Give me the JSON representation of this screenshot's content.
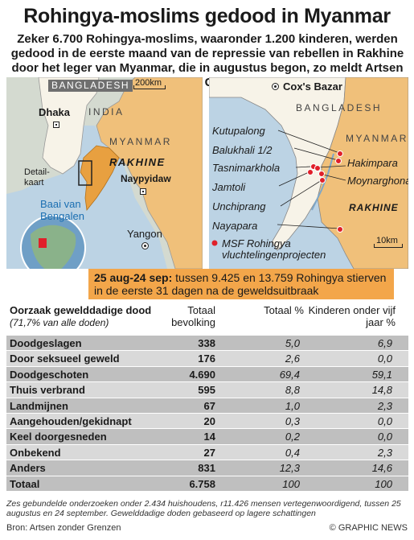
{
  "title": "Rohingya-moslims gedood in Myanmar",
  "intro": "Zeker 6.700 Rohingya-moslims, waaronder 1.200 kinderen, werden gedood in de eerste maand van de repressie van rebellen in Rakhine door het leger van Myanmar, die in augustus begon, zo meldt Artsen zonder Grenzen",
  "map_left": {
    "countries": [
      "BANGLADESH",
      "INDIA",
      "MYANMAR"
    ],
    "region": "RAKHINE",
    "scale": "200km",
    "cities": [
      "Dhaka",
      "Naypyidaw",
      "Yangon"
    ],
    "inset_label": "Detail-kaart",
    "sea": "Baai van Bengalen"
  },
  "map_right": {
    "town": "Cox's Bazar",
    "countries": [
      "BANGLADESH",
      "MYANMAR"
    ],
    "region": "RAKHINE",
    "camps": [
      "Kutupalong",
      "Balukhali 1/2",
      "Tasnimarkhola",
      "Jamtoli",
      "Unchiprang",
      "Nayapara",
      "Hakimpara",
      "Moynarghona"
    ],
    "legend": "MSF Rohingya vluchtelingenprojecten",
    "scale": "10km",
    "colors": {
      "camp": "#e0202a",
      "myanmar": "#f0c07a",
      "bangladesh": "#f7f3e8"
    }
  },
  "callout": {
    "dates": "25 aug-24 sep:",
    "text": "tussen 9.425 en 13.759 Rohingya stierven in de eerste 31 dagen na de geweldsuitbraak"
  },
  "table": {
    "headers": {
      "cause": "Oorzaak gewelddadige dood",
      "cause_sub": "(71,7% van alle doden)",
      "pop": "Totaal bevolking",
      "pct": "Totaal %",
      "kids": "Kinderen onder vijf jaar %"
    },
    "rows": [
      {
        "label": "Doodgeslagen",
        "pop": "338",
        "pct": "5,0",
        "kids": "6,9"
      },
      {
        "label": "Door seksueel geweld",
        "pop": "176",
        "pct": "2,6",
        "kids": "0,0"
      },
      {
        "label": "Doodgeschoten",
        "pop": "4.690",
        "pct": "69,4",
        "kids": "59,1"
      },
      {
        "label": "Thuis verbrand",
        "pop": "595",
        "pct": "8,8",
        "kids": "14,8"
      },
      {
        "label": "Landmijnen",
        "pop": "67",
        "pct": "1,0",
        "kids": "2,3"
      },
      {
        "label": "Aangehouden/gekidnapt",
        "pop": "20",
        "pct": "0,3",
        "kids": "0,0"
      },
      {
        "label": "Keel doorgesneden",
        "pop": "14",
        "pct": "0,2",
        "kids": "0,0"
      },
      {
        "label": "Onbekend",
        "pop": "27",
        "pct": "0,4",
        "kids": "2,3"
      },
      {
        "label": "Anders",
        "pop": "831",
        "pct": "12,3",
        "kids": "14,6"
      }
    ],
    "total": {
      "label": "Totaal",
      "pop": "6.758",
      "pct": "100",
      "kids": "100"
    }
  },
  "footnote": "Zes gebundelde onderzoeken onder 2.434 huishoudens, r11.426 mensen vertegenwoordigend, tussen 25 augustus en 24 september. Gewelddadige doden gebaseerd op lagere schattingen",
  "source": "Bron: Artsen zonder Grenzen",
  "credit": "© GRAPHIC NEWS"
}
